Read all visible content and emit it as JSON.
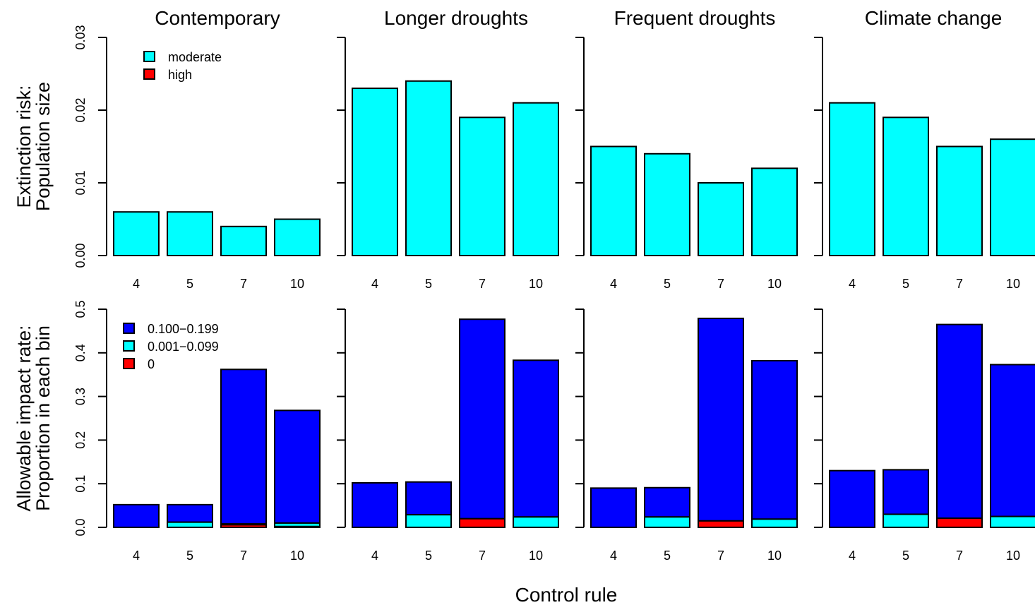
{
  "colors": {
    "cyan": "#00ffff",
    "red": "#ff0000",
    "blue": "#0000ff"
  },
  "chart_data": {
    "type": "bar",
    "xlabel": "Control rule",
    "categories": [
      "4",
      "5",
      "7",
      "10"
    ],
    "scenarios": [
      "Contemporary",
      "Longer droughts",
      "Frequent droughts",
      "Climate change"
    ],
    "rows": [
      {
        "ylabel_line1": "Extinction risk:",
        "ylabel_line2": "Population size",
        "ylim": [
          0,
          0.03
        ],
        "yticks": [
          "0.00",
          "0.01",
          "0.02",
          "0.03"
        ],
        "stacked": true,
        "legend": [
          {
            "name": "moderate",
            "color": "#00ffff"
          },
          {
            "name": "high",
            "color": "#ff0000"
          }
        ],
        "panels": [
          {
            "scenario": "Contemporary",
            "series": [
              {
                "name": "high",
                "color": "#ff0000",
                "values": [
                  0,
                  0,
                  0,
                  0
                ]
              },
              {
                "name": "moderate",
                "color": "#00ffff",
                "values": [
                  0.006,
                  0.006,
                  0.004,
                  0.005
                ]
              }
            ]
          },
          {
            "scenario": "Longer droughts",
            "series": [
              {
                "name": "high",
                "color": "#ff0000",
                "values": [
                  0,
                  0,
                  0,
                  0
                ]
              },
              {
                "name": "moderate",
                "color": "#00ffff",
                "values": [
                  0.023,
                  0.024,
                  0.019,
                  0.021
                ]
              }
            ]
          },
          {
            "scenario": "Frequent droughts",
            "series": [
              {
                "name": "high",
                "color": "#ff0000",
                "values": [
                  0,
                  0,
                  0,
                  0
                ]
              },
              {
                "name": "moderate",
                "color": "#00ffff",
                "values": [
                  0.015,
                  0.014,
                  0.01,
                  0.012
                ]
              }
            ]
          },
          {
            "scenario": "Climate change",
            "series": [
              {
                "name": "high",
                "color": "#ff0000",
                "values": [
                  0,
                  0,
                  0,
                  0
                ]
              },
              {
                "name": "moderate",
                "color": "#00ffff",
                "values": [
                  0.021,
                  0.019,
                  0.015,
                  0.016
                ]
              }
            ]
          }
        ]
      },
      {
        "ylabel_line1": "Allowable impact rate:",
        "ylabel_line2": "Proportion in each bin",
        "ylim": [
          0,
          0.5
        ],
        "yticks": [
          "0.0",
          "0.1",
          "0.2",
          "0.3",
          "0.4",
          "0.5"
        ],
        "stacked": true,
        "legend": [
          {
            "name": "0.100−0.199",
            "color": "#0000ff"
          },
          {
            "name": "0.001−0.099",
            "color": "#00ffff"
          },
          {
            "name": "0",
            "color": "#ff0000"
          }
        ],
        "panels": [
          {
            "scenario": "Contemporary",
            "series": [
              {
                "name": "0",
                "color": "#ff0000",
                "values": [
                  0,
                  0,
                  0.006,
                  0.002
                ]
              },
              {
                "name": "0.001−0.099",
                "color": "#00ffff",
                "values": [
                  0,
                  0.012,
                  0.002,
                  0.008
                ]
              },
              {
                "name": "0.100−0.199",
                "color": "#0000ff",
                "values": [
                  0.052,
                  0.04,
                  0.354,
                  0.258
                ]
              }
            ]
          },
          {
            "scenario": "Longer droughts",
            "series": [
              {
                "name": "0",
                "color": "#ff0000",
                "values": [
                  0,
                  0,
                  0.02,
                  0
                ]
              },
              {
                "name": "0.001−0.099",
                "color": "#00ffff",
                "values": [
                  0,
                  0.029,
                  0,
                  0.024
                ]
              },
              {
                "name": "0.100−0.199",
                "color": "#0000ff",
                "values": [
                  0.102,
                  0.075,
                  0.457,
                  0.359
                ]
              }
            ]
          },
          {
            "scenario": "Frequent droughts",
            "series": [
              {
                "name": "0",
                "color": "#ff0000",
                "values": [
                  0,
                  0,
                  0.015,
                  0
                ]
              },
              {
                "name": "0.001−0.099",
                "color": "#00ffff",
                "values": [
                  0,
                  0.024,
                  0,
                  0.019
                ]
              },
              {
                "name": "0.100−0.199",
                "color": "#0000ff",
                "values": [
                  0.09,
                  0.067,
                  0.464,
                  0.363
                ]
              }
            ]
          },
          {
            "scenario": "Climate change",
            "series": [
              {
                "name": "0",
                "color": "#ff0000",
                "values": [
                  0,
                  0,
                  0.021,
                  0
                ]
              },
              {
                "name": "0.001−0.099",
                "color": "#00ffff",
                "values": [
                  0,
                  0.03,
                  0,
                  0.025
                ]
              },
              {
                "name": "0.100−0.199",
                "color": "#0000ff",
                "values": [
                  0.13,
                  0.102,
                  0.444,
                  0.348
                ]
              }
            ]
          }
        ]
      }
    ]
  }
}
